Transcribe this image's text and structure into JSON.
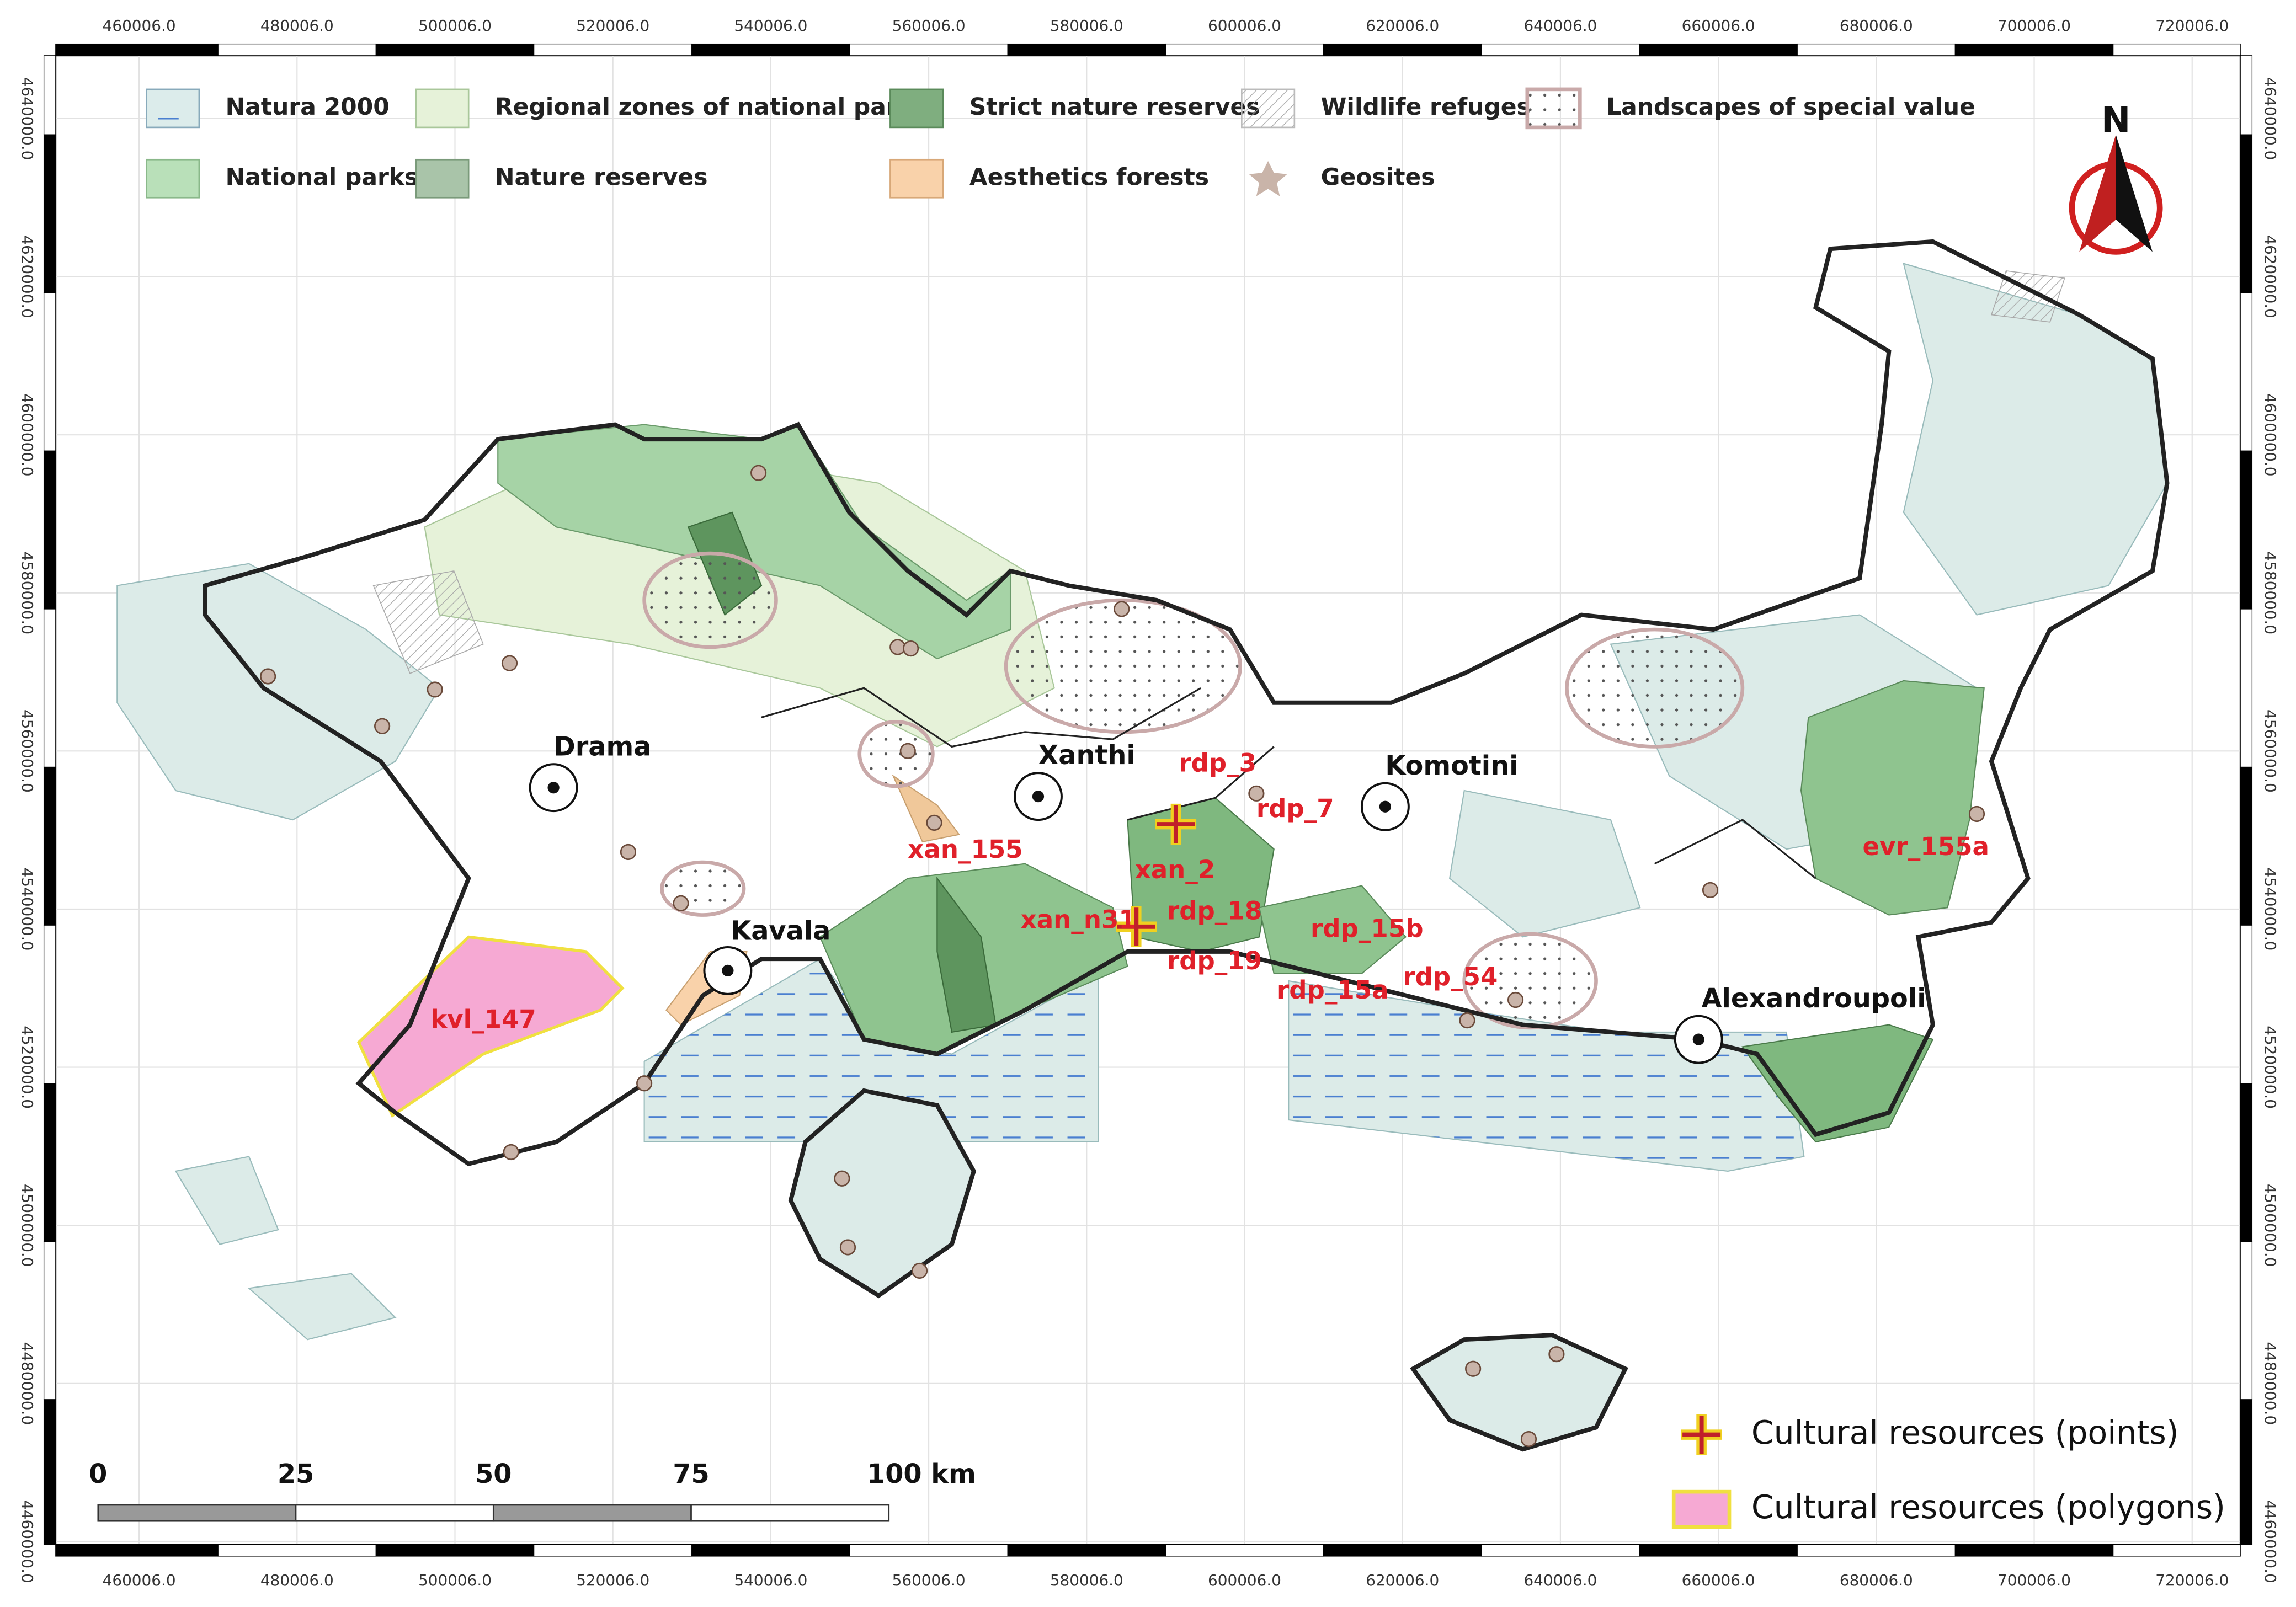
{
  "legend": {
    "items": [
      "Natura 2000",
      "Regional zones of national parks",
      "Strict nature reserves",
      "Wildlife refuges",
      "Landscapes of special value",
      "National parks",
      "Nature reserves",
      "Aesthetics forests",
      "Geosites"
    ]
  },
  "north_arrow": {
    "label": "N"
  },
  "grid": {
    "x_ticks": [
      {
        "value": 460006,
        "label": "460006.0"
      },
      {
        "value": 480006,
        "label": "480006.0"
      },
      {
        "value": 500006,
        "label": "500006.0"
      },
      {
        "value": 520006,
        "label": "520006.0"
      },
      {
        "value": 540006,
        "label": "540006.0"
      },
      {
        "value": 560006,
        "label": "560006.0"
      },
      {
        "value": 580006,
        "label": "580006.0"
      },
      {
        "value": 600006,
        "label": "600006.0"
      },
      {
        "value": 620006,
        "label": "620006.0"
      },
      {
        "value": 640006,
        "label": "640006.0"
      },
      {
        "value": 660006,
        "label": "660006.0"
      },
      {
        "value": 680006,
        "label": "680006.0"
      },
      {
        "value": 700006,
        "label": "700006.0"
      },
      {
        "value": 720006,
        "label": "720006.0"
      }
    ],
    "y_ticks": [
      {
        "value": 4460000,
        "label": "4460000.0"
      },
      {
        "value": 4480000,
        "label": "4480000.0"
      },
      {
        "value": 4500000,
        "label": "4500000.0"
      },
      {
        "value": 4520000,
        "label": "4520000.0"
      },
      {
        "value": 4540000,
        "label": "4540000.0"
      },
      {
        "value": 4560000,
        "label": "4560000.0"
      },
      {
        "value": 4580000,
        "label": "4580000.0"
      },
      {
        "value": 4600000,
        "label": "4600000.0"
      },
      {
        "value": 4620000,
        "label": "4620000.0"
      },
      {
        "value": 4640000,
        "label": "4640000.0"
      }
    ]
  },
  "cities": [
    "Drama",
    "Xanthi",
    "Komotini",
    "Kavala",
    "Alexandroupoli"
  ],
  "sites": [
    "xan_155",
    "rdp_3",
    "rdp_7",
    "xan_2",
    "xan_n31",
    "rdp_18",
    "rdp_19",
    "rdp_15b",
    "rdp_15a",
    "rdp_54",
    "evr_155a",
    "kvl_147"
  ],
  "scale_bar": {
    "labels": [
      "0",
      "25",
      "50",
      "75",
      "100 km"
    ]
  },
  "cultural_legend": [
    "Cultural resources (points)",
    "Cultural resources (polygons)"
  ]
}
